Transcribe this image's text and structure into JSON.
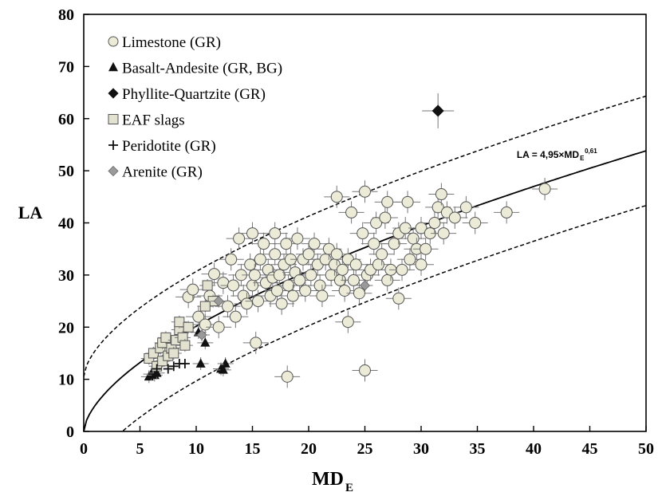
{
  "chart_data": {
    "type": "scatter",
    "xlabel": "MD",
    "xlabel_sub": "E",
    "ylabel": "LA",
    "xlim": [
      0,
      50
    ],
    "ylim": [
      0,
      80
    ],
    "xticks": [
      0,
      5,
      10,
      15,
      20,
      25,
      30,
      35,
      40,
      45,
      50
    ],
    "yticks": [
      0,
      10,
      20,
      30,
      40,
      50,
      60,
      70,
      80
    ],
    "grid": false,
    "legend_position": "top-left",
    "colors": {
      "limestone_fill": "#ecebd8",
      "marker_stroke": "#555555",
      "arenite_fill": "#9a9a9a",
      "eaf_fill": "#e3e1cf",
      "dark": "#111111"
    },
    "series": [
      {
        "name": "Limestone (GR)",
        "marker": "circle",
        "points": [
          [
            9.3,
            25.8
          ],
          [
            9.7,
            27.2
          ],
          [
            10.2,
            22.0
          ],
          [
            10.8,
            20.5
          ],
          [
            11.2,
            26.0
          ],
          [
            11.6,
            30.2
          ],
          [
            12.0,
            20.0
          ],
          [
            12.4,
            28.5
          ],
          [
            12.8,
            24.0
          ],
          [
            13.1,
            33.0
          ],
          [
            13.3,
            28.0
          ],
          [
            13.5,
            22.0
          ],
          [
            13.8,
            37.0
          ],
          [
            14.0,
            30.0
          ],
          [
            14.2,
            26.0
          ],
          [
            14.5,
            24.5
          ],
          [
            14.8,
            32.0
          ],
          [
            15.0,
            38.0
          ],
          [
            15.0,
            28.0
          ],
          [
            15.2,
            30.0
          ],
          [
            15.3,
            17.0
          ],
          [
            15.5,
            25.0
          ],
          [
            15.7,
            33.0
          ],
          [
            16.0,
            36.0
          ],
          [
            16.2,
            28.5
          ],
          [
            16.4,
            31.0
          ],
          [
            16.6,
            26.0
          ],
          [
            16.8,
            29.5
          ],
          [
            17.0,
            38.0
          ],
          [
            17.0,
            34.0
          ],
          [
            17.2,
            27.0
          ],
          [
            17.4,
            30.0
          ],
          [
            17.6,
            24.5
          ],
          [
            17.8,
            32.0
          ],
          [
            18.0,
            36.0
          ],
          [
            18.1,
            10.5
          ],
          [
            18.2,
            28.0
          ],
          [
            18.4,
            33.0
          ],
          [
            18.6,
            26.0
          ],
          [
            18.8,
            30.5
          ],
          [
            19.0,
            37.0
          ],
          [
            19.2,
            29.0
          ],
          [
            19.5,
            33.0
          ],
          [
            19.7,
            27.0
          ],
          [
            20.0,
            34.0
          ],
          [
            20.2,
            30.0
          ],
          [
            20.5,
            36.0
          ],
          [
            20.8,
            32.0
          ],
          [
            21.0,
            28.0
          ],
          [
            21.2,
            26.0
          ],
          [
            21.5,
            33.0
          ],
          [
            21.8,
            35.0
          ],
          [
            22.0,
            30.0
          ],
          [
            22.3,
            32.0
          ],
          [
            22.5,
            34.0
          ],
          [
            22.5,
            45.0
          ],
          [
            22.8,
            29.0
          ],
          [
            23.0,
            31.0
          ],
          [
            23.2,
            27.0
          ],
          [
            23.5,
            33.0
          ],
          [
            23.5,
            21.0
          ],
          [
            23.8,
            42.0
          ],
          [
            24.0,
            29.0
          ],
          [
            24.2,
            32.0
          ],
          [
            24.5,
            26.5
          ],
          [
            24.8,
            38.0
          ],
          [
            25.0,
            11.7
          ],
          [
            25.0,
            46.0
          ],
          [
            25.2,
            30.0
          ],
          [
            25.5,
            31.0
          ],
          [
            25.8,
            36.0
          ],
          [
            26.0,
            40.0
          ],
          [
            26.2,
            32.0
          ],
          [
            26.5,
            34.0
          ],
          [
            26.8,
            41.0
          ],
          [
            27.0,
            44.0
          ],
          [
            27.0,
            29.0
          ],
          [
            27.3,
            31.0
          ],
          [
            27.6,
            36.0
          ],
          [
            28.0,
            38.0
          ],
          [
            28.0,
            25.5
          ],
          [
            28.3,
            31.0
          ],
          [
            28.6,
            39.0
          ],
          [
            28.8,
            44.0
          ],
          [
            29.0,
            33.0
          ],
          [
            29.3,
            37.0
          ],
          [
            29.6,
            35.0
          ],
          [
            30.0,
            32.0
          ],
          [
            30.0,
            39.0
          ],
          [
            30.4,
            35.0
          ],
          [
            30.8,
            38.0
          ],
          [
            31.2,
            40.0
          ],
          [
            31.5,
            43.0
          ],
          [
            31.8,
            45.5
          ],
          [
            32.0,
            38.0
          ],
          [
            32.3,
            42.0
          ],
          [
            33.0,
            41.0
          ],
          [
            34.0,
            43.0
          ],
          [
            34.8,
            40.0
          ],
          [
            37.6,
            42.0
          ],
          [
            41.0,
            46.5
          ]
        ]
      },
      {
        "name": "Basalt-Andesite (GR, BG)",
        "marker": "triangle",
        "points": [
          [
            5.8,
            10.5
          ],
          [
            6.0,
            11.0
          ],
          [
            6.3,
            10.8
          ],
          [
            6.5,
            11.2
          ],
          [
            10.2,
            19.0
          ],
          [
            10.8,
            17.0
          ],
          [
            10.4,
            13.0
          ],
          [
            12.2,
            12.0
          ],
          [
            12.6,
            13.0
          ],
          [
            12.4,
            11.8
          ]
        ]
      },
      {
        "name": "Phyllite-Quartzite (GR)",
        "marker": "diamond",
        "points": [
          [
            31.5,
            61.5
          ]
        ]
      },
      {
        "name": "EAF slags",
        "marker": "square",
        "points": [
          [
            5.8,
            14.0
          ],
          [
            6.2,
            15.0
          ],
          [
            6.5,
            12.5
          ],
          [
            6.8,
            16.0
          ],
          [
            7.0,
            17.0
          ],
          [
            7.0,
            13.5
          ],
          [
            7.3,
            18.0
          ],
          [
            7.5,
            14.5
          ],
          [
            7.8,
            16.0
          ],
          [
            8.0,
            15.0
          ],
          [
            8.2,
            17.5
          ],
          [
            8.5,
            19.5
          ],
          [
            8.5,
            21.0
          ],
          [
            8.8,
            18.0
          ],
          [
            9.0,
            16.5
          ],
          [
            9.3,
            20.0
          ],
          [
            11.0,
            28.0
          ],
          [
            11.5,
            25.0
          ],
          [
            10.8,
            24.0
          ]
        ]
      },
      {
        "name": "Peridotite (GR)",
        "marker": "plus",
        "points": [
          [
            7.5,
            12.0
          ],
          [
            8.0,
            12.5
          ],
          [
            8.5,
            13.0
          ],
          [
            6.5,
            12.0
          ],
          [
            9.0,
            13.0
          ]
        ]
      },
      {
        "name": "Arenite (GR)",
        "marker": "diamond-gray",
        "points": [
          [
            10.5,
            18.5
          ],
          [
            12.0,
            25.0
          ],
          [
            25.0,
            28.0
          ]
        ]
      }
    ],
    "curves": [
      {
        "style": "solid",
        "coef": 4.95,
        "exp": 0.61
      },
      {
        "style": "dashed",
        "coef": 4.95,
        "exp": 0.61,
        "offset": 10.5
      },
      {
        "style": "dashed",
        "coef": 4.95,
        "exp": 0.61,
        "offset": -10.5
      }
    ],
    "equation": {
      "text": "LA = 4,95×MD",
      "sub": "E",
      "sup": "0,61",
      "x": 38.5,
      "y": 52.5
    }
  }
}
